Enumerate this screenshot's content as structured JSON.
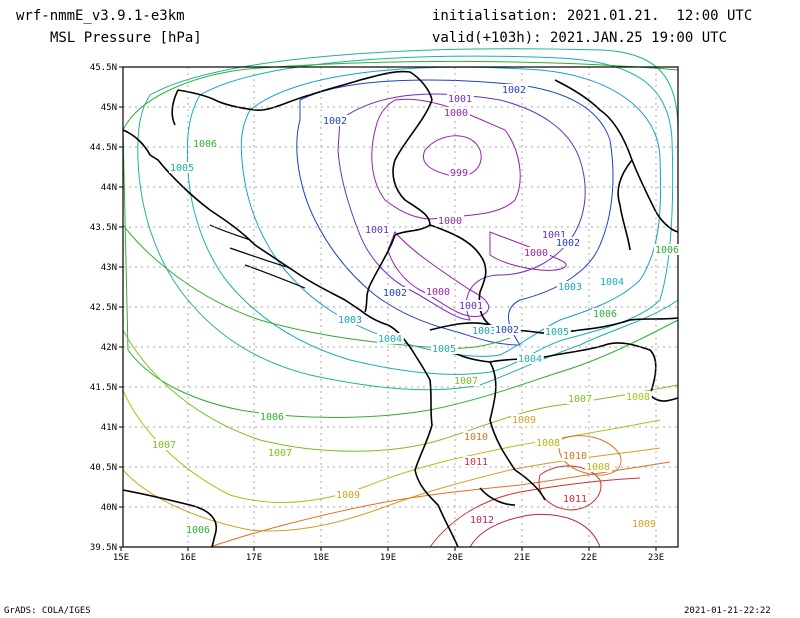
{
  "header": {
    "model": "wrf-nmmE_v3.9.1-e3km",
    "field": "MSL Pressure [hPa]",
    "init": "initialisation: 2021.01.21.  12:00 UTC",
    "valid": "valid(+103h): 2021.JAN.25 19:00 UTC"
  },
  "footer": {
    "left": "GrADS: COLA/IGES",
    "right": "2021-01-21-22:22"
  },
  "map": {
    "lon_labels": [
      "15E",
      "16E",
      "17E",
      "18E",
      "19E",
      "20E",
      "21E",
      "22E",
      "23E"
    ],
    "lat_labels": [
      "45.5N",
      "45N",
      "44.5N",
      "44N",
      "43.5N",
      "43N",
      "42.5N",
      "42N",
      "41.5N",
      "41N",
      "40.5N",
      "40N",
      "39.5N"
    ],
    "contour_labels": [
      {
        "t": "1002",
        "c": "#1f3fd0"
      },
      {
        "t": "1001",
        "c": "#6a2fc0"
      },
      {
        "t": "1000",
        "c": "#9a1fb0"
      },
      {
        "t": "999",
        "c": "#9a1fb0"
      },
      {
        "t": "1002",
        "c": "#1f3fd0"
      },
      {
        "t": "1006",
        "c": "#2fb030"
      },
      {
        "t": "1005",
        "c": "#20b0a0"
      },
      {
        "t": "1001",
        "c": "#6a2fc0"
      },
      {
        "t": "1000",
        "c": "#9a1fb0"
      },
      {
        "t": "1001",
        "c": "#6a2fc0"
      },
      {
        "t": "1002",
        "c": "#1f3fd0"
      },
      {
        "t": "1000",
        "c": "#9a1fb0"
      },
      {
        "t": "1003",
        "c": "#1aa0c8"
      },
      {
        "t": "1004",
        "c": "#18b0b8"
      },
      {
        "t": "1003",
        "c": "#1aa0c8"
      },
      {
        "t": "1006",
        "c": "#2fb030"
      },
      {
        "t": "1002",
        "c": "#1f3fd0"
      },
      {
        "t": "1000",
        "c": "#9a1fb0"
      },
      {
        "t": "1001",
        "c": "#6a2fc0"
      },
      {
        "t": "1003",
        "c": "#1aa0c8"
      },
      {
        "t": "1002",
        "c": "#1f3fd0"
      },
      {
        "t": "1005",
        "c": "#20b0a0"
      },
      {
        "t": "1004",
        "c": "#18b0b8"
      },
      {
        "t": "1005",
        "c": "#20b0a0"
      },
      {
        "t": "1006",
        "c": "#2fb030"
      },
      {
        "t": "1004",
        "c": "#18b0b8"
      },
      {
        "t": "1007",
        "c": "#7ac020"
      },
      {
        "t": "1007",
        "c": "#7ac020"
      },
      {
        "t": "1008",
        "c": "#b0c010"
      },
      {
        "t": "1006",
        "c": "#2fb030"
      },
      {
        "t": "1007",
        "c": "#7ac020"
      },
      {
        "t": "1009",
        "c": "#d0a020"
      },
      {
        "t": "1010",
        "c": "#e07020"
      },
      {
        "t": "1008",
        "c": "#c0b010"
      },
      {
        "t": "1010",
        "c": "#e07020"
      },
      {
        "t": "1011",
        "c": "#d03030"
      },
      {
        "t": "1007",
        "c": "#7ac020"
      },
      {
        "t": "1009",
        "c": "#d0a020"
      },
      {
        "t": "1006",
        "c": "#2fb030"
      },
      {
        "t": "1011",
        "c": "#d03030"
      },
      {
        "t": "1012",
        "c": "#c02060"
      },
      {
        "t": "1009",
        "c": "#d0a020"
      },
      {
        "t": "1008",
        "c": "#c0b010"
      }
    ]
  }
}
